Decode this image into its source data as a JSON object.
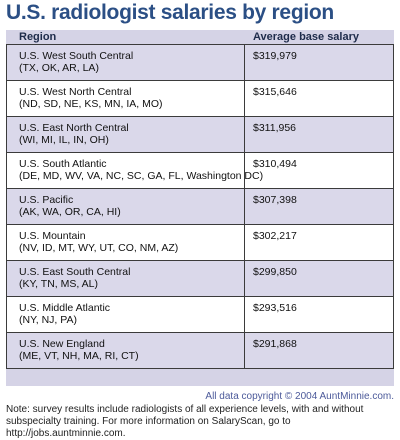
{
  "title": "U.S. radiologist salaries by region",
  "table": {
    "headers": [
      "Region",
      "Average base salary"
    ]
  },
  "chart_data": {
    "type": "table",
    "title": "U.S. radiologist salaries by region",
    "columns": [
      "Region",
      "Average base salary"
    ],
    "rows": [
      {
        "region": "U.S. West South Central",
        "states": "(TX, OK, AR, LA)",
        "salary": "$319,979",
        "value": 319979
      },
      {
        "region": "U.S. West North Central",
        "states": "(ND, SD, NE, KS, MN, IA, MO)",
        "salary": "$315,646",
        "value": 315646
      },
      {
        "region": "U.S. East North Central",
        "states": "(WI, MI, IL, IN, OH)",
        "salary": "$311,956",
        "value": 311956
      },
      {
        "region": "U.S. South Atlantic",
        "states": "(DE, MD, WV, VA, NC, SC, GA, FL, Washington DC)",
        "salary": "$310,494",
        "value": 310494
      },
      {
        "region": "U.S. Pacific",
        "states": "(AK, WA, OR, CA, HI)",
        "salary": "$307,398",
        "value": 307398
      },
      {
        "region": "U.S. Mountain",
        "states": "(NV, ID, MT, WY, UT, CO, NM, AZ)",
        "salary": "$302,217",
        "value": 302217
      },
      {
        "region": "U.S. East South Central",
        "states": "(KY, TN, MS, AL)",
        "salary": "$299,850",
        "value": 299850
      },
      {
        "region": "U.S. Middle Atlantic",
        "states": "(NY, NJ, PA)",
        "salary": "$293,516",
        "value": 293516
      },
      {
        "region": "U.S. New England",
        "states": "(ME, VT, NH, MA, RI, CT)",
        "salary": "$291,868",
        "value": 291868
      }
    ]
  },
  "footer": {
    "copyright": "All data copyright © 2004 AuntMinnie.com.",
    "note": "Note: survey results include radiologists of all experience levels, with and without subspecialty training. For more information on SalaryScan, go to http://jobs.auntminnie.com."
  },
  "colors": {
    "title": "#2b4f85",
    "shaded_row": "#dad8ea",
    "header_band": "#d5d3e6",
    "border": "#3b3b3b",
    "copyright": "#4c5a9a"
  }
}
